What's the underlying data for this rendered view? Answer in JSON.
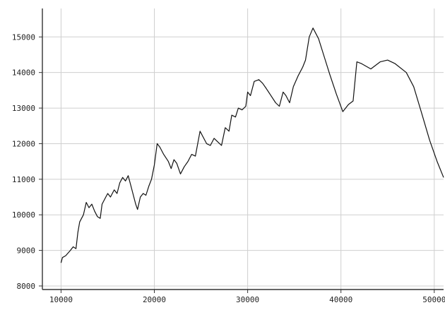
{
  "chart_data": {
    "type": "line",
    "title": "",
    "xlabel": "",
    "ylabel": "",
    "xlim": [
      8000,
      51000
    ],
    "ylim": [
      7900,
      15800
    ],
    "grid": true,
    "x_ticks": [
      10000,
      20000,
      30000,
      40000,
      50000
    ],
    "y_ticks": [
      8000,
      9000,
      10000,
      11000,
      12000,
      13000,
      14000,
      15000
    ],
    "x_tick_labels": [
      "10000",
      "20000",
      "30000",
      "40000",
      "50000"
    ],
    "y_tick_labels": [
      "8000",
      "9000",
      "10000",
      "11000",
      "12000",
      "13000",
      "14000",
      "15000"
    ],
    "series": [
      {
        "color": "#111111",
        "points": [
          [
            10000,
            8650
          ],
          [
            10150,
            8800
          ],
          [
            10500,
            8850
          ],
          [
            11000,
            9000
          ],
          [
            11300,
            9100
          ],
          [
            11600,
            9050
          ],
          [
            11800,
            9500
          ],
          [
            12000,
            9800
          ],
          [
            12400,
            10000
          ],
          [
            12700,
            10350
          ],
          [
            13000,
            10200
          ],
          [
            13300,
            10300
          ],
          [
            13600,
            10100
          ],
          [
            13900,
            9950
          ],
          [
            14200,
            9900
          ],
          [
            14400,
            10300
          ],
          [
            14800,
            10500
          ],
          [
            15000,
            10600
          ],
          [
            15300,
            10500
          ],
          [
            15700,
            10700
          ],
          [
            16000,
            10600
          ],
          [
            16300,
            10900
          ],
          [
            16600,
            11050
          ],
          [
            16900,
            10950
          ],
          [
            17200,
            11100
          ],
          [
            17500,
            10800
          ],
          [
            18000,
            10300
          ],
          [
            18200,
            10150
          ],
          [
            18500,
            10500
          ],
          [
            18800,
            10600
          ],
          [
            19100,
            10550
          ],
          [
            19400,
            10800
          ],
          [
            19700,
            11000
          ],
          [
            20000,
            11400
          ],
          [
            20300,
            12000
          ],
          [
            20600,
            11900
          ],
          [
            21000,
            11700
          ],
          [
            21500,
            11500
          ],
          [
            21800,
            11300
          ],
          [
            22100,
            11550
          ],
          [
            22400,
            11450
          ],
          [
            22800,
            11150
          ],
          [
            23200,
            11350
          ],
          [
            23600,
            11500
          ],
          [
            24000,
            11700
          ],
          [
            24400,
            11650
          ],
          [
            24900,
            12350
          ],
          [
            25200,
            12200
          ],
          [
            25600,
            12000
          ],
          [
            26000,
            11950
          ],
          [
            26400,
            12150
          ],
          [
            26800,
            12050
          ],
          [
            27200,
            11950
          ],
          [
            27600,
            12450
          ],
          [
            28000,
            12350
          ],
          [
            28300,
            12800
          ],
          [
            28700,
            12750
          ],
          [
            29000,
            13000
          ],
          [
            29400,
            12950
          ],
          [
            29800,
            13050
          ],
          [
            30000,
            13450
          ],
          [
            30300,
            13350
          ],
          [
            30700,
            13750
          ],
          [
            31200,
            13800
          ],
          [
            31600,
            13700
          ],
          [
            32000,
            13550
          ],
          [
            32500,
            13350
          ],
          [
            33000,
            13150
          ],
          [
            33400,
            13050
          ],
          [
            33800,
            13450
          ],
          [
            34100,
            13350
          ],
          [
            34500,
            13150
          ],
          [
            34900,
            13600
          ],
          [
            35400,
            13900
          ],
          [
            35900,
            14150
          ],
          [
            36200,
            14350
          ],
          [
            36600,
            15000
          ],
          [
            37000,
            15250
          ],
          [
            37600,
            14950
          ],
          [
            38200,
            14450
          ],
          [
            38800,
            13950
          ],
          [
            39500,
            13400
          ],
          [
            40200,
            12900
          ],
          [
            40800,
            13100
          ],
          [
            41300,
            13200
          ],
          [
            41700,
            14300
          ],
          [
            42200,
            14250
          ],
          [
            43200,
            14100
          ],
          [
            44200,
            14300
          ],
          [
            45000,
            14350
          ],
          [
            45800,
            14250
          ],
          [
            47000,
            14000
          ],
          [
            47800,
            13600
          ],
          [
            48600,
            12900
          ],
          [
            49500,
            12100
          ],
          [
            50300,
            11500
          ],
          [
            51000,
            11050
          ]
        ]
      }
    ]
  }
}
